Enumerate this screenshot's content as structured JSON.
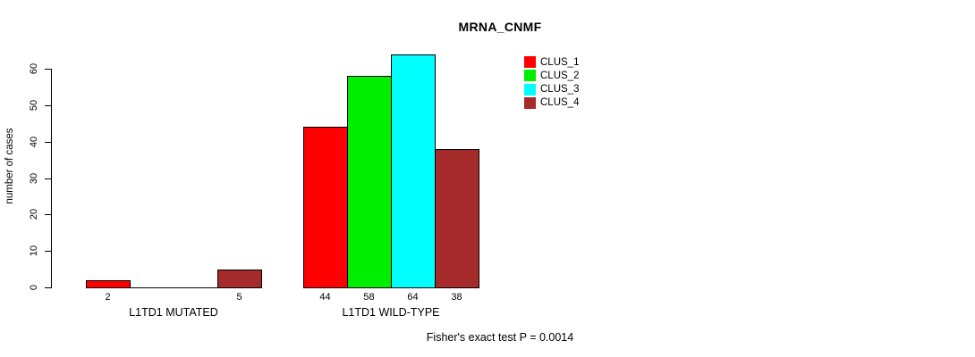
{
  "chart_data": {
    "type": "bar",
    "title": "MRNA_CNMF",
    "ylabel": "number of cases",
    "xlabel": "",
    "ylim": [
      0,
      60
    ],
    "yticks": [
      0,
      10,
      20,
      30,
      40,
      50,
      60
    ],
    "grid": false,
    "legend_position": "top-right",
    "categories": [
      "L1TD1 MUTATED",
      "L1TD1 WILD-TYPE"
    ],
    "series": [
      {
        "name": "CLUS_1",
        "color": "#ff0000",
        "values": [
          2,
          44
        ]
      },
      {
        "name": "CLUS_2",
        "color": "#00ee00",
        "values": [
          0,
          58
        ]
      },
      {
        "name": "CLUS_3",
        "color": "#00ffff",
        "values": [
          0,
          64
        ]
      },
      {
        "name": "CLUS_4",
        "color": "#a52a2a",
        "values": [
          5,
          38
        ]
      }
    ],
    "bar_value_labels": [
      [
        "2",
        "",
        "",
        "5"
      ],
      [
        "44",
        "58",
        "64",
        "38"
      ]
    ],
    "annotation": "Fisher's exact test P = 0.0014"
  }
}
